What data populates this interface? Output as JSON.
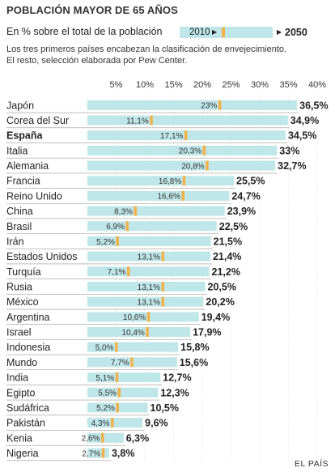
{
  "title": "POBLACIÓN MAYOR DE 65 AÑOS",
  "subtitle": "En % sobre el total de la población",
  "legend": {
    "start_label": "2010",
    "end_label": "2050"
  },
  "notes": [
    "Los tres primeros países encabezan la clasificación de envejecimiento.",
    "El resto, selección elaborada por Pew Center."
  ],
  "source": "EL PAÍS",
  "colors": {
    "bar": "#bfe6e8",
    "marker": "#f2b24a",
    "text": "#222222",
    "row_divider": "#999999",
    "grid": "#cccccc"
  },
  "chart_data": {
    "type": "bar",
    "orientation": "horizontal",
    "title": "POBLACIÓN MAYOR DE 65 AÑOS",
    "xlabel": "",
    "ylabel": "",
    "xlim": [
      0,
      41
    ],
    "xticks": [
      5,
      10,
      15,
      20,
      25,
      30,
      35,
      40
    ],
    "xtick_labels": [
      "5%",
      "10%",
      "15%",
      "20%",
      "25%",
      "30%",
      "35%",
      "40%"
    ],
    "grid": true,
    "legend_position": "top-right",
    "categories": [
      "Japón",
      "Corea del Sur",
      "España",
      "Italia",
      "Alemania",
      "Francia",
      "Reino Unido",
      "China",
      "Brasil",
      "Irán",
      "Estados Unidos",
      "Turquía",
      "Rusia",
      "México",
      "Argentina",
      "Israel",
      "Indonesia",
      "Mundo",
      "India",
      "Egipto",
      "Sudáfrica",
      "Pakistán",
      "Kenia",
      "Nigeria"
    ],
    "highlighted_categories": [
      "España"
    ],
    "series": [
      {
        "name": "2010",
        "values": [
          23,
          11.1,
          17.1,
          20.3,
          20.8,
          16.8,
          16.6,
          8.3,
          6.9,
          5.2,
          13.1,
          7.1,
          13.1,
          13.1,
          10.6,
          10.4,
          5.0,
          7.7,
          5.1,
          5.5,
          5.2,
          4.3,
          2.6,
          2.7
        ],
        "labels": [
          "23%",
          "11,1%",
          "17,1%",
          "20,3%",
          "20,8%",
          "16,8%",
          "16,6%",
          "8,3%",
          "6,9%",
          "5,2%",
          "13,1%",
          "7,1%",
          "13,1%",
          "13,1%",
          "10,6%",
          "10,4%",
          "5,0%",
          "7,7%",
          "5,1%",
          "5,5%",
          "5,2%",
          "4,3%",
          "2,6%",
          "2,7%"
        ]
      },
      {
        "name": "2050",
        "values": [
          36.5,
          34.9,
          34.5,
          33,
          32.7,
          25.5,
          24.7,
          23.9,
          22.5,
          21.5,
          21.4,
          21.2,
          20.5,
          20.2,
          19.4,
          17.9,
          15.8,
          15.6,
          12.7,
          12.3,
          10.5,
          9.6,
          6.3,
          3.8
        ],
        "labels": [
          "36,5%",
          "34,9%",
          "34,5%",
          "33%",
          "32,7%",
          "25,5%",
          "24,7%",
          "23,9%",
          "22,5%",
          "21,5%",
          "21,4%",
          "21,2%",
          "20,5%",
          "20,2%",
          "19,4%",
          "17,9%",
          "15,8%",
          "15,6%",
          "12,7%",
          "12,3%",
          "10,5%",
          "9,6%",
          "6,3%",
          "3,8%"
        ]
      }
    ]
  }
}
